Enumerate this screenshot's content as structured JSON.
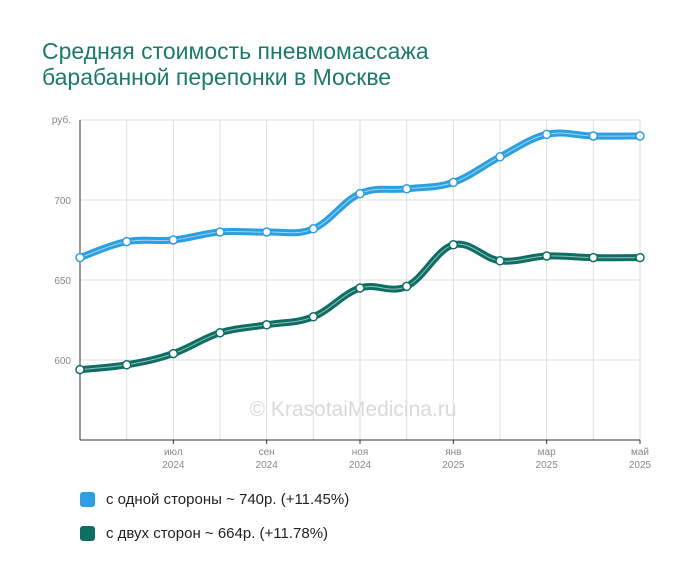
{
  "title_lines": [
    "Средняя стоимость пневмомассажа",
    "барабанной перепонки в Москве"
  ],
  "watermark": "© KrasotaiMedicina.ru",
  "legend": [
    {
      "label": "с одной стороны ~ 740р. (+11.45%)",
      "color": "#2b9fe0"
    },
    {
      "label": "с двух сторон ~ 664р. (+11.78%)",
      "color": "#0f6e63"
    }
  ],
  "chart_data": {
    "type": "line",
    "ylabel": "руб.",
    "ylim": [
      550,
      750
    ],
    "yticks": [
      600,
      650,
      700
    ],
    "x": [
      "2024-05",
      "2024-06",
      "2024-07",
      "2024-08",
      "2024-09",
      "2024-10",
      "2024-11",
      "2024-12",
      "2025-01",
      "2025-02",
      "2025-03",
      "2025-04",
      "2025-05"
    ],
    "xtick_labels": [
      {
        "x": "2024-07",
        "month": "июл",
        "year": "2024"
      },
      {
        "x": "2024-09",
        "month": "сен",
        "year": "2024"
      },
      {
        "x": "2024-11",
        "month": "ноя",
        "year": "2024"
      },
      {
        "x": "2025-01",
        "month": "янв",
        "year": "2025"
      },
      {
        "x": "2025-03",
        "month": "мар",
        "year": "2025"
      },
      {
        "x": "2025-05",
        "month": "май",
        "year": "2025"
      }
    ],
    "series": [
      {
        "name": "с одной стороны",
        "color": "#2b9fe0",
        "values": [
          664,
          674,
          675,
          680,
          680,
          682,
          704,
          707,
          711,
          727,
          741,
          740,
          740
        ]
      },
      {
        "name": "с двух сторон",
        "color": "#0f6e63",
        "values": [
          594,
          597,
          604,
          617,
          622,
          627,
          645,
          646,
          672,
          662,
          665,
          664,
          664
        ]
      }
    ]
  }
}
